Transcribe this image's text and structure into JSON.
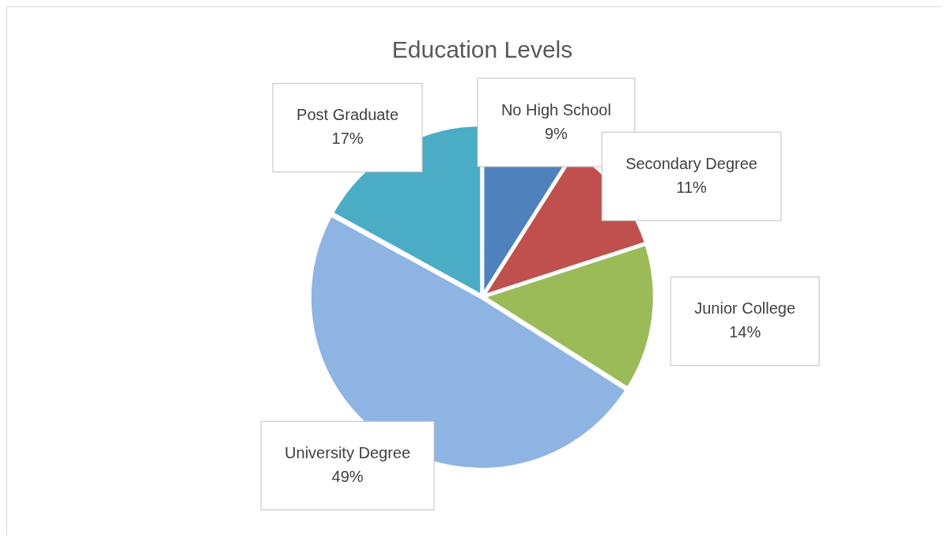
{
  "chart_data": {
    "type": "pie",
    "title": "Education Levels",
    "categories": [
      "No High School",
      "Secondary Degree",
      "Junior College",
      "University Degree",
      "Post Graduate"
    ],
    "values": [
      9,
      11,
      14,
      49,
      17
    ],
    "value_labels": [
      "9%",
      "11%",
      "14%",
      "49%",
      "17%"
    ],
    "colors": [
      "#4f81bd",
      "#c0504d",
      "#9bbb59",
      "#8eb4e3",
      "#4bacc6"
    ],
    "legend": false
  }
}
